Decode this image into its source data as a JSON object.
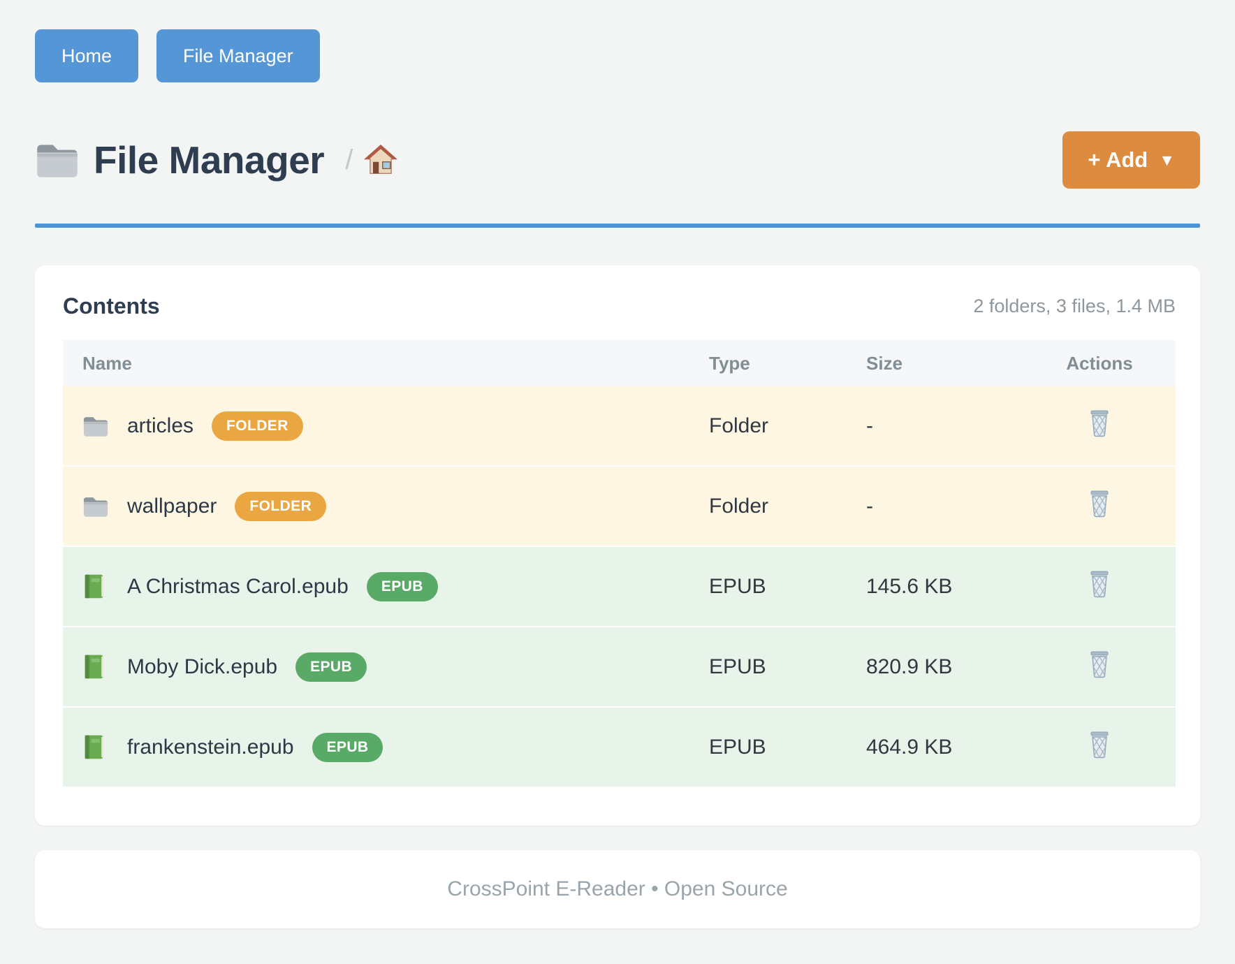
{
  "nav": {
    "home_label": "Home",
    "file_manager_label": "File Manager"
  },
  "header": {
    "title": "File Manager",
    "breadcrumb_separator": "/",
    "add_button_label": "+ Add",
    "add_button_caret": "▼"
  },
  "contents": {
    "heading": "Contents",
    "summary": "2 folders, 3 files, 1.4 MB",
    "columns": [
      "Name",
      "Type",
      "Size",
      "Actions"
    ],
    "rows": [
      {
        "name": "articles",
        "icon": "folder-icon",
        "badge": "FOLDER",
        "type": "Folder",
        "size": "-",
        "kind": "folder"
      },
      {
        "name": "wallpaper",
        "icon": "folder-icon",
        "badge": "FOLDER",
        "type": "Folder",
        "size": "-",
        "kind": "folder"
      },
      {
        "name": "A Christmas Carol.epub",
        "icon": "book-icon",
        "badge": "EPUB",
        "type": "EPUB",
        "size": "145.6 KB",
        "kind": "epub"
      },
      {
        "name": "Moby Dick.epub",
        "icon": "book-icon",
        "badge": "EPUB",
        "type": "EPUB",
        "size": "820.9 KB",
        "kind": "epub"
      },
      {
        "name": "frankenstein.epub",
        "icon": "book-icon",
        "badge": "EPUB",
        "type": "EPUB",
        "size": "464.9 KB",
        "kind": "epub"
      }
    ]
  },
  "footer": {
    "text": "CrossPoint E-Reader • Open Source"
  },
  "colors": {
    "accent_blue": "#5596d7",
    "underline_blue": "#4d94d6",
    "add_orange": "#dd8b3e",
    "folder_badge_orange": "#eaa640",
    "epub_badge_green": "#5aaa67",
    "folder_row_bg": "#fdf6e3",
    "epub_row_bg": "#e8f3e9"
  }
}
